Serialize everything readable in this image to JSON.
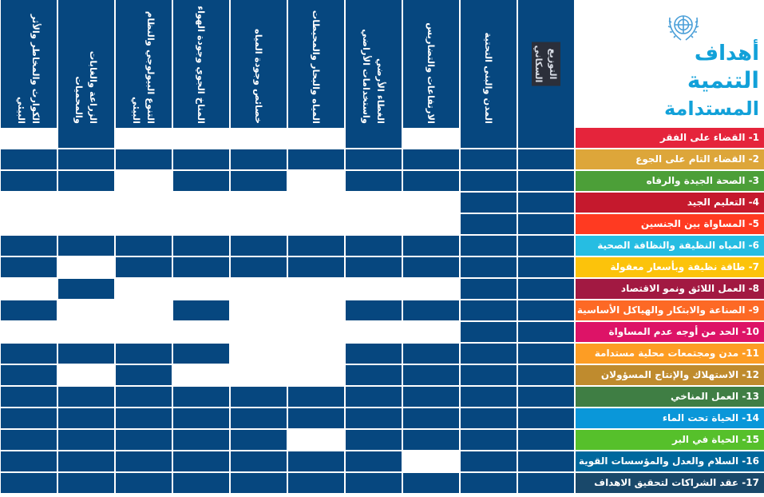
{
  "logo": {
    "line1": "أهداف",
    "line2": "التنمية",
    "line3": "المستدامة",
    "emblem": "un-emblem-icon",
    "colors": {
      "text": "#12a1d9",
      "emblem": "#4a9fd8"
    }
  },
  "columns": [
    "التوزيع السكاني",
    "المدن والبنى التحتية",
    "الارتفاعات والتضاريس",
    "الغطاء الأرضي واستخدامات الأراضي",
    "المياه والبحار والمحيطات",
    "خصائص وجودة المياه",
    "المناخ الجوي وجودة الهواء",
    "التنوع البيولوجي والنظام البيئي",
    "الزراعة والغابات والمحميات",
    "الكوارث والمخاطر والأثر البيئي"
  ],
  "goals": [
    {
      "label": "1- القضاء على الفقر",
      "color": "#e5243b",
      "cells": [
        1,
        1,
        0,
        1,
        0,
        0,
        0,
        0,
        1,
        0
      ]
    },
    {
      "label": "2- القضاء التام على الجوع",
      "color": "#dda63a",
      "cells": [
        1,
        1,
        1,
        1,
        1,
        1,
        1,
        1,
        1,
        1
      ]
    },
    {
      "label": "3- الصحة الجيدة والرفاه",
      "color": "#4c9f38",
      "cells": [
        1,
        1,
        1,
        1,
        0,
        1,
        1,
        0,
        1,
        1
      ]
    },
    {
      "label": "4- التعليم الجيد",
      "color": "#c5192d",
      "cells": [
        1,
        1,
        0,
        0,
        0,
        0,
        0,
        0,
        0,
        0
      ]
    },
    {
      "label": "5- المساواة بين الجنسين",
      "color": "#ff3a21",
      "cells": [
        1,
        1,
        0,
        0,
        0,
        0,
        0,
        0,
        0,
        0
      ]
    },
    {
      "label": "6- المياه النظيفة والنظافة الصحية",
      "color": "#26bde2",
      "cells": [
        1,
        1,
        1,
        1,
        1,
        1,
        1,
        1,
        1,
        1
      ]
    },
    {
      "label": "7- طاقة نظيفة وبأسعار معقولة",
      "color": "#fcc30b",
      "cells": [
        1,
        1,
        1,
        1,
        1,
        1,
        1,
        1,
        0,
        1
      ]
    },
    {
      "label": "8- العمل اللائق ونمو الاقتصاد",
      "color": "#a21942",
      "cells": [
        1,
        1,
        0,
        0,
        0,
        0,
        0,
        0,
        1,
        0
      ]
    },
    {
      "label": "9- الصناعة والابتكار والهياكل الأساسية",
      "color": "#fd6925",
      "cells": [
        1,
        1,
        1,
        1,
        0,
        0,
        1,
        0,
        0,
        1
      ]
    },
    {
      "label": "10- الحد من أوجه عدم المساواة",
      "color": "#dd1367",
      "cells": [
        1,
        1,
        0,
        0,
        0,
        0,
        0,
        0,
        0,
        0
      ]
    },
    {
      "label": "11- مدن ومجتمعات محلية مستدامة",
      "color": "#fd9d24",
      "cells": [
        1,
        1,
        1,
        1,
        0,
        0,
        1,
        1,
        1,
        1
      ]
    },
    {
      "label": "12- الاستهلاك والإنتاج المسؤولان",
      "color": "#bf8b2e",
      "cells": [
        1,
        1,
        1,
        1,
        0,
        0,
        0,
        1,
        0,
        1
      ]
    },
    {
      "label": "13- العمل المناخي",
      "color": "#3f7e44",
      "cells": [
        1,
        1,
        1,
        1,
        1,
        1,
        1,
        1,
        1,
        1
      ]
    },
    {
      "label": "14- الحياة تحت الماء",
      "color": "#0a97d9",
      "cells": [
        1,
        1,
        1,
        1,
        1,
        1,
        1,
        1,
        1,
        1
      ]
    },
    {
      "label": "15- الحياة في البر",
      "color": "#56c02b",
      "cells": [
        1,
        1,
        1,
        1,
        0,
        1,
        1,
        1,
        1,
        1
      ]
    },
    {
      "label": "16- السلام والعدل والمؤسسات القوية",
      "color": "#00689d",
      "cells": [
        1,
        1,
        0,
        1,
        1,
        1,
        1,
        1,
        1,
        1
      ]
    },
    {
      "label": "17- عقد الشراكات لتحقيق الاهداف",
      "color": "#19486a",
      "cells": [
        1,
        1,
        1,
        1,
        1,
        1,
        1,
        1,
        1,
        1
      ]
    }
  ]
}
